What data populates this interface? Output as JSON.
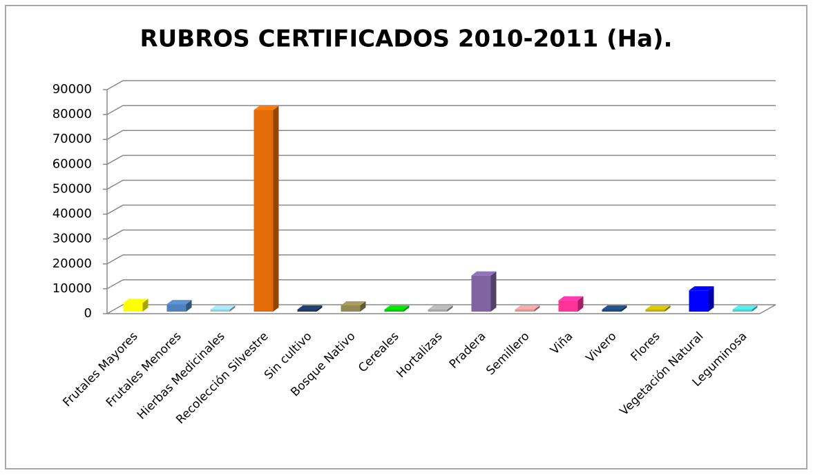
{
  "chart_data": {
    "type": "bar3d",
    "title": "RUBROS CERTIFICADOS 2010-2011 (Ha).",
    "categories": [
      "Frutales Mayores",
      "Frutales Menores",
      "Hierbas Medicinales",
      "Recolección Silvestre",
      "Sin cultivo",
      "Bosque Nativo",
      "Cereales",
      "Hortalizas",
      "Pradera",
      "Semillero",
      "Viña",
      "Vivero",
      "Flores",
      "Vegetación Natural",
      "Leguminosa"
    ],
    "values": [
      3500,
      3000,
      800,
      81000,
      600,
      2500,
      300,
      200,
      14500,
      100,
      4500,
      200,
      150,
      8500,
      100
    ],
    "colors": [
      "#ffff00",
      "#4f81bd",
      "#93cddd",
      "#e46c0a",
      "#1f3864",
      "#948a54",
      "#00cc00",
      "#a6a6a6",
      "#8064a2",
      "#d99694",
      "#ff3399",
      "#1f497d",
      "#c0b000",
      "#0000ff",
      "#4bd0d0"
    ],
    "ylim": [
      0,
      90000
    ],
    "yticks": [
      0,
      10000,
      20000,
      30000,
      40000,
      50000,
      60000,
      70000,
      80000,
      90000
    ],
    "grid": true
  }
}
